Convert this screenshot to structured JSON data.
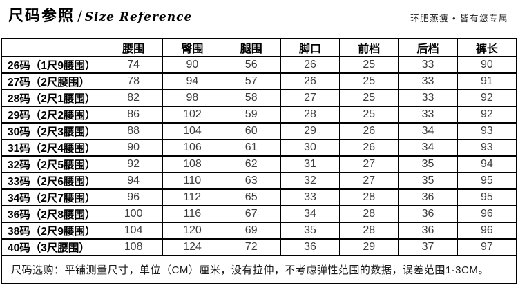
{
  "header": {
    "title_cn": "尺码参照",
    "title_divider": "/",
    "title_en": "Size Reference",
    "tagline": "环肥燕瘦 • 皆有您专属"
  },
  "chart_data": {
    "type": "table",
    "title": "尺码参照 / Size Reference",
    "corner_cell": "",
    "columns": [
      "腰围",
      "臀围",
      "腿围",
      "脚口",
      "前档",
      "后档",
      "裤长"
    ],
    "rows": [
      {
        "label": "26码（1尺9腰围）",
        "values": [
          74,
          90,
          56,
          26,
          25,
          33,
          90
        ]
      },
      {
        "label": "27码（2尺腰围）",
        "values": [
          78,
          94,
          57,
          26,
          25,
          33,
          91
        ]
      },
      {
        "label": "28码（2尺1腰围）",
        "values": [
          82,
          98,
          58,
          27,
          25,
          33,
          92
        ]
      },
      {
        "label": "29码（2尺2腰围）",
        "values": [
          86,
          102,
          59,
          28,
          25,
          33,
          92
        ]
      },
      {
        "label": "30码（2尺3腰围）",
        "values": [
          88,
          104,
          60,
          29,
          26,
          34,
          93
        ]
      },
      {
        "label": "31码（2尺4腰围）",
        "values": [
          90,
          106,
          61,
          30,
          26,
          34,
          93
        ]
      },
      {
        "label": "32码（2尺5腰围）",
        "values": [
          92,
          108,
          62,
          31,
          27,
          35,
          94
        ]
      },
      {
        "label": "33码（2尺6腰围）",
        "values": [
          94,
          110,
          63,
          32,
          27,
          35,
          95
        ]
      },
      {
        "label": "34码（2尺7腰围）",
        "values": [
          96,
          112,
          65,
          33,
          28,
          36,
          95
        ]
      },
      {
        "label": "36码（2尺8腰围）",
        "values": [
          100,
          116,
          67,
          34,
          28,
          36,
          96
        ]
      },
      {
        "label": "38码（2尺9腰围）",
        "values": [
          104,
          120,
          69,
          35,
          28,
          36,
          96
        ]
      },
      {
        "label": "40码（3尺腰围）",
        "values": [
          108,
          124,
          72,
          36,
          29,
          37,
          97
        ]
      }
    ],
    "note": "尺码选购：平铺测量尺寸，单位（CM）厘米，没有拉伸，不考虑弹性范围的数据，误差范围1-3CM。",
    "unit": "CM"
  },
  "colors": {
    "background": "#ffffff",
    "border": "#000000",
    "heading_text": "#000000",
    "value_text": "#3d3d3d"
  }
}
